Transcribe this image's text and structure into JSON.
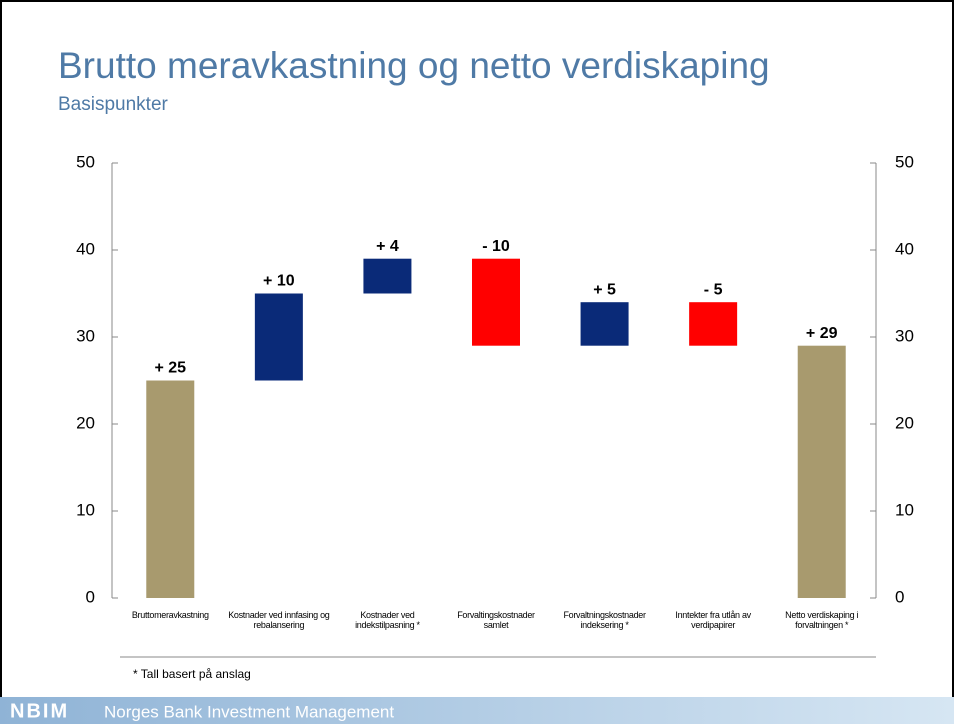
{
  "chart_data": {
    "type": "waterfall",
    "title": "Brutto meravkastning og netto verdiskaping",
    "subtitle": "Basispunkter",
    "categories": [
      "Bruttomeravkastning",
      "Kostnader ved innfasing og rebalansering",
      "Kostnader ved indekstilpasning *",
      "Forvaltingskostnader samlet",
      "Forvaltningskostnader indeksering *",
      "Inntekter fra utlån av verdipapirer",
      "Netto verdiskaping i forvaltningen *"
    ],
    "values": [
      25,
      10,
      4,
      -10,
      5,
      -5,
      29
    ],
    "value_labels": [
      "+ 25",
      "+ 10",
      "+ 4",
      "- 10",
      "+ 5",
      "- 5",
      "+ 29"
    ],
    "is_total": [
      true,
      false,
      false,
      false,
      false,
      false,
      true
    ],
    "colors": [
      "#a89a6e",
      "#0a2a78",
      "#0a2a78",
      "#ff0000",
      "#0a2a78",
      "#ff0000",
      "#a89a6e"
    ],
    "ylim": [
      0,
      50
    ],
    "yticks": [
      0,
      10,
      20,
      30,
      40,
      50
    ],
    "y2lim": [
      0,
      50
    ],
    "y2ticks": [
      0,
      10,
      20,
      30,
      40,
      50
    ],
    "footnote": "* Tall basert på anslag"
  },
  "footer": {
    "logo": "NBIM",
    "name": "Norges Bank Investment Management"
  }
}
